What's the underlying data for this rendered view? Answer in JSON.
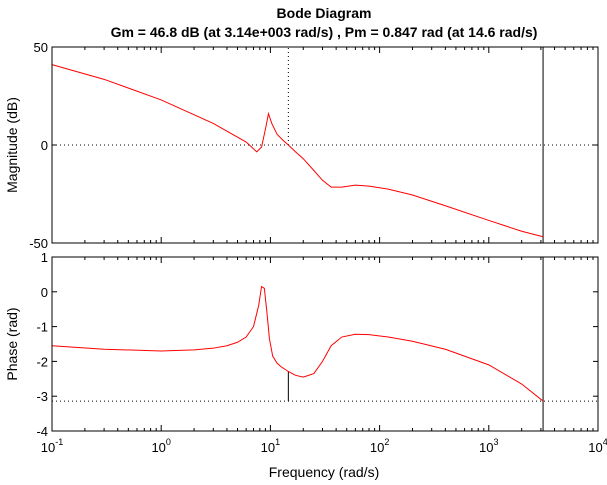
{
  "chart_data": {
    "type": "line",
    "title": "Bode Diagram",
    "subtitle": "Gm = 46.8 dB (at 3.14e+003 rad/s) ,  Pm = 0.847 rad (at 14.6 rad/s)",
    "xlabel": "Frequency  (rad/s)",
    "xscale": "log",
    "xlim": [
      0.1,
      10000
    ],
    "xticks": [
      {
        "base": "10",
        "exp": "-1"
      },
      {
        "base": "10",
        "exp": "0"
      },
      {
        "base": "10",
        "exp": "1"
      },
      {
        "base": "10",
        "exp": "2"
      },
      {
        "base": "10",
        "exp": "3"
      },
      {
        "base": "10",
        "exp": "4"
      }
    ],
    "grid": false,
    "colors": {
      "curve": "#ff0000",
      "axes": "#000000",
      "tick_grid": "#c8c8c8"
    },
    "panels": [
      {
        "ylabel": "Magnitude (dB)",
        "ylim": [
          -50,
          50
        ],
        "yticks": [
          "50",
          "0",
          "-50"
        ],
        "reference_line": 0,
        "margin_marker": {
          "x": 14.6,
          "from": 0,
          "to": 50,
          "style": "dotted"
        },
        "series": [
          {
            "x": [
              0.1,
              0.3,
              1,
              3,
              6,
              7.5,
              8.3,
              9.0,
              9.6,
              10.3,
              11.5,
              13,
              14.6,
              17,
              20,
              25,
              30,
              36,
              45,
              60,
              80,
              120,
              200,
              400,
              1000,
              2000,
              3140
            ],
            "y": [
              41,
              33.5,
              23,
              11,
              1.5,
              -3.5,
              -1,
              8,
              16,
              11,
              5.5,
              2.5,
              0,
              -3.5,
              -7,
              -13,
              -18,
              -21.5,
              -21.5,
              -20.5,
              -21,
              -22.5,
              -25.5,
              -31,
              -38.5,
              -44,
              -46.8
            ]
          }
        ]
      },
      {
        "ylabel": "Phase (rad)",
        "ylim": [
          -4,
          1
        ],
        "yticks": [
          "1",
          "0",
          "-1",
          "-2",
          "-3",
          "-4"
        ],
        "reference_line": -3.14,
        "margin_marker": {
          "x": 14.6,
          "from": -3.14,
          "to": -2.29,
          "style": "solid"
        },
        "series": [
          {
            "x": [
              0.1,
              0.3,
              1,
              2,
              3,
              4,
              5,
              6,
              7,
              7.8,
              8.3,
              8.8,
              9.3,
              9.8,
              10.5,
              11.5,
              12.5,
              14.6,
              17,
              20,
              25,
              30,
              36,
              45,
              60,
              80,
              120,
              200,
              400,
              1000,
              2000,
              3140
            ],
            "y": [
              -1.55,
              -1.65,
              -1.7,
              -1.67,
              -1.62,
              -1.55,
              -1.45,
              -1.3,
              -1.0,
              -0.4,
              0.15,
              0.1,
              -0.6,
              -1.35,
              -1.85,
              -2.05,
              -2.15,
              -2.29,
              -2.4,
              -2.45,
              -2.35,
              -2.0,
              -1.55,
              -1.3,
              -1.22,
              -1.23,
              -1.3,
              -1.42,
              -1.65,
              -2.1,
              -2.65,
              -3.14
            ]
          }
        ]
      }
    ],
    "gain_crossover_marker": {
      "x": 3140,
      "style": "solid"
    }
  }
}
